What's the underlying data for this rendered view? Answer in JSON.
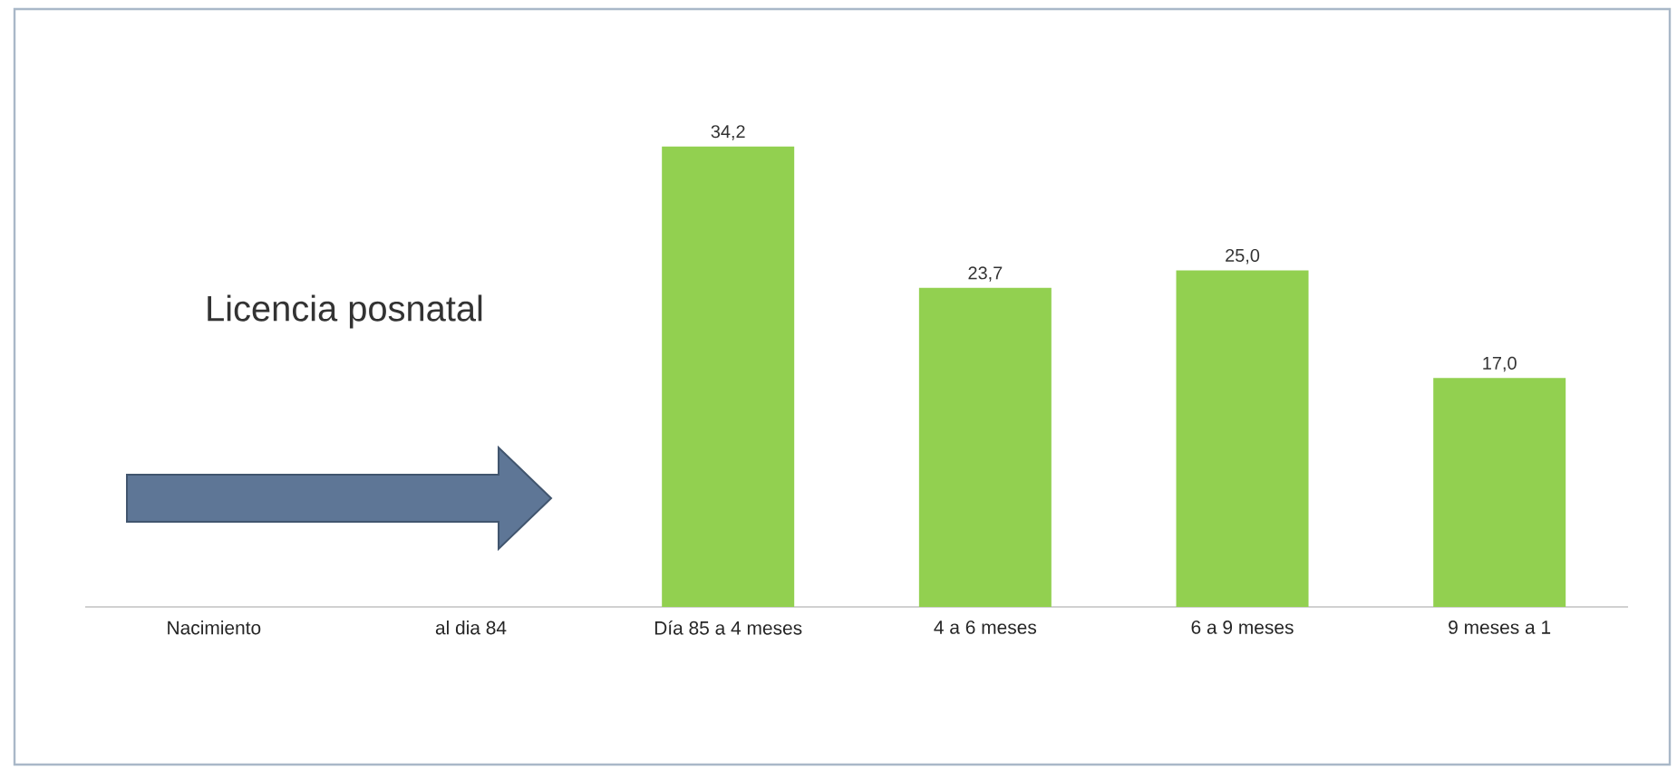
{
  "chart_data": {
    "type": "bar",
    "categories": [
      "Nacimiento",
      "al dia 84",
      "Día 85 a 4 meses",
      "4 a 6 meses",
      "6 a 9 meses",
      "9 meses a 1"
    ],
    "values": [
      null,
      null,
      34.2,
      23.7,
      25.0,
      17.0
    ],
    "value_labels": [
      null,
      null,
      "34,2",
      "23,7",
      "25,0",
      "17,0"
    ],
    "color": "#92d050",
    "annotations": [
      "Licencia posnatal"
    ]
  }
}
